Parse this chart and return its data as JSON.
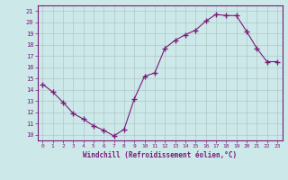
{
  "x": [
    0,
    1,
    2,
    3,
    4,
    5,
    6,
    7,
    8,
    9,
    10,
    11,
    12,
    13,
    14,
    15,
    16,
    17,
    18,
    19,
    20,
    21,
    22,
    23
  ],
  "y": [
    14.5,
    13.8,
    12.9,
    11.9,
    11.4,
    10.8,
    10.4,
    9.9,
    10.5,
    13.2,
    15.2,
    15.5,
    17.7,
    18.4,
    18.9,
    19.3,
    20.1,
    20.7,
    20.6,
    20.6,
    19.2,
    17.7,
    16.5,
    16.5
  ],
  "line_color": "#7b1a7b",
  "marker": "+",
  "marker_size": 4,
  "bg_color": "#cce8e8",
  "grid_color": "#b0c8c8",
  "xlabel": "Windchill (Refroidissement éolien,°C)",
  "xlabel_color": "#7b1a7b",
  "tick_color": "#7b1a7b",
  "ylim": [
    9.5,
    21.5
  ],
  "xlim": [
    -0.5,
    23.5
  ],
  "yticks": [
    10,
    11,
    12,
    13,
    14,
    15,
    16,
    17,
    18,
    19,
    20,
    21
  ],
  "xticks": [
    0,
    1,
    2,
    3,
    4,
    5,
    6,
    7,
    8,
    9,
    10,
    11,
    12,
    13,
    14,
    15,
    16,
    17,
    18,
    19,
    20,
    21,
    22,
    23
  ]
}
